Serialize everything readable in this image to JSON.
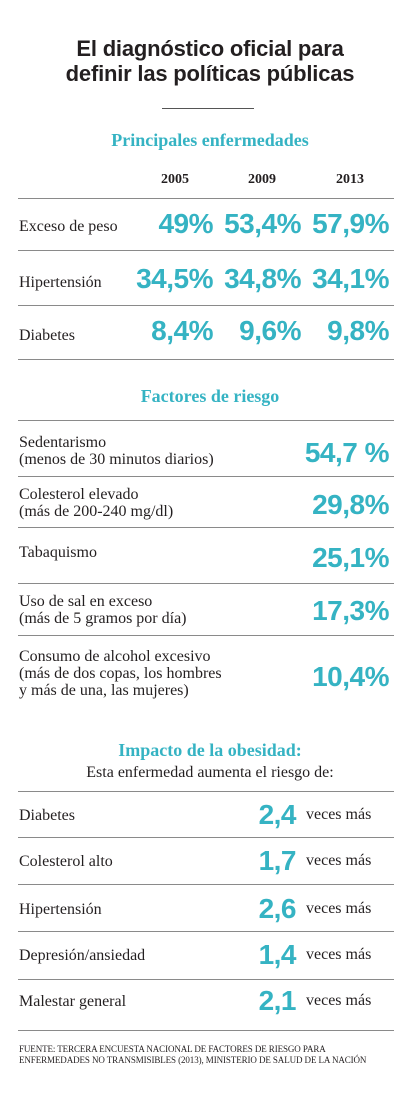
{
  "title": {
    "line1": "El diagnóstico oficial para",
    "line2": "definir las políticas públicas"
  },
  "enfermedades": {
    "heading": "Principales enfermedades",
    "years": [
      "2005",
      "2009",
      "2013"
    ],
    "rows": [
      {
        "label": "Exceso de peso",
        "values": [
          "49%",
          "53,4%",
          "57,9%"
        ]
      },
      {
        "label": "Hipertensión",
        "values": [
          "34,5%",
          "34,8%",
          "34,1%"
        ]
      },
      {
        "label": "Diabetes",
        "values": [
          "8,4%",
          "9,6%",
          "9,8%"
        ]
      }
    ]
  },
  "factores": {
    "heading": "Factores de riesgo",
    "rows": [
      {
        "lines": [
          "Sedentarismo",
          "(menos de 30 minutos diarios)"
        ],
        "value": "54,7 %"
      },
      {
        "lines": [
          "Colesterol elevado",
          "(más de 200-240 mg/dl)"
        ],
        "value": "29,8%"
      },
      {
        "lines": [
          "Tabaquismo"
        ],
        "value": "25,1%"
      },
      {
        "lines": [
          "Uso de sal en exceso",
          "(más de 5 gramos por día)"
        ],
        "value": "17,3%"
      },
      {
        "lines": [
          "Consumo de alcohol excesivo",
          "(más de dos copas, los hombres",
          "y más de una, las mujeres)"
        ],
        "value": "10,4%"
      }
    ]
  },
  "impacto": {
    "heading": "Impacto de la obesidad:",
    "subheading": "Esta enfermedad aumenta el riesgo de:",
    "rows": [
      {
        "label": "Diabetes",
        "value": "2,4",
        "unit": "veces más"
      },
      {
        "label": "Colesterol alto",
        "value": "1,7",
        "unit": "veces más"
      },
      {
        "label": "Hipertensión",
        "value": "2,6",
        "unit": "veces más"
      },
      {
        "label": "Depresión/ansiedad",
        "value": "1,4",
        "unit": "veces más"
      },
      {
        "label": "Malestar general",
        "value": "2,1",
        "unit": "veces más"
      }
    ]
  },
  "footer": {
    "line1": "FUENTE: TERCERA ENCUESTA NACIONAL DE FACTORES DE RIESGO PARA",
    "line2": "ENFERMEDADES NO TRANSMISIBLES (2013),  MINISTERIO DE SALUD DE LA NACIÓN"
  },
  "colors": {
    "accent": "#35b3c3",
    "text": "#231f20",
    "rule": "#8a8a8a"
  }
}
